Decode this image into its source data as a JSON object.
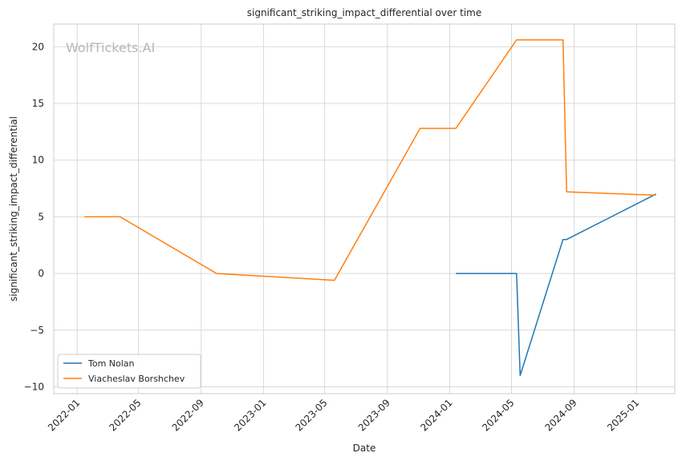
{
  "chart_data": {
    "type": "line",
    "title": "significant_striking_impact_differential over time",
    "xlabel": "Date",
    "ylabel": "significant_striking_impact_differential",
    "watermark": "WolfTickets.AI",
    "x_ticks": [
      "2022-01",
      "2022-05",
      "2022-09",
      "2023-01",
      "2023-05",
      "2023-09",
      "2024-01",
      "2024-05",
      "2024-09",
      "2025-01"
    ],
    "y_ticks": [
      20,
      15,
      10,
      5,
      0,
      -5,
      -10
    ],
    "y_tick_labels": [
      "20",
      "15",
      "10",
      "5",
      "0",
      "−5",
      "−10"
    ],
    "xlim": [
      "2021-11-16",
      "2025-03-17"
    ],
    "ylim": [
      -10.6,
      22
    ],
    "grid": true,
    "legend_position": "lower-left",
    "series": [
      {
        "name": "Tom Nolan",
        "color": "#1f77b4",
        "points": [
          {
            "x": "2024-01-13",
            "y": 0
          },
          {
            "x": "2024-05-11",
            "y": 0
          },
          {
            "x": "2024-05-18",
            "y": -9
          },
          {
            "x": "2024-08-10",
            "y": 3
          },
          {
            "x": "2024-08-17",
            "y": 3
          },
          {
            "x": "2025-02-08",
            "y": 7
          }
        ]
      },
      {
        "name": "Viacheslav Borshchev",
        "color": "#ff7f0e",
        "points": [
          {
            "x": "2022-01-15",
            "y": 5
          },
          {
            "x": "2022-03-26",
            "y": 5
          },
          {
            "x": "2022-10-01",
            "y": 0
          },
          {
            "x": "2023-05-20",
            "y": -0.6
          },
          {
            "x": "2023-11-04",
            "y": 12.8
          },
          {
            "x": "2024-01-13",
            "y": 12.8
          },
          {
            "x": "2024-05-11",
            "y": 20.6
          },
          {
            "x": "2024-08-10",
            "y": 20.6
          },
          {
            "x": "2024-08-17",
            "y": 7.2
          },
          {
            "x": "2025-02-08",
            "y": 6.9
          }
        ]
      }
    ]
  }
}
